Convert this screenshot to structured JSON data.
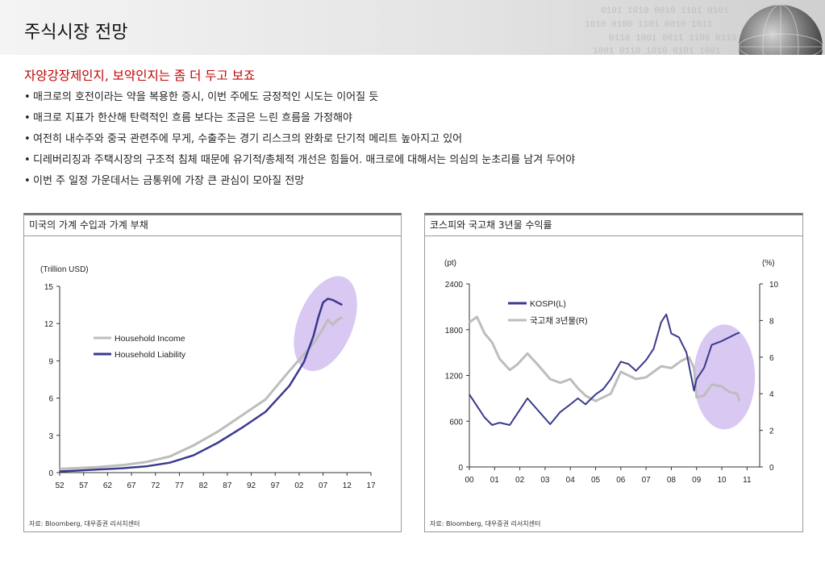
{
  "header": {
    "title": "주식시장 전망"
  },
  "subtitle": "자양강장제인지, 보약인지는 좀 더 두고 보죠",
  "bullets": [
    "매크로의 호전이라는 약을 복용한 증시, 이번 주에도 긍정적인 시도는 이어질 듯",
    "매크로 지표가 한산해 탄력적인 흐름 보다는 조금은 느린 흐름을 가정해야",
    "여전히 내수주와 중국 관련주에 무게, 수출주는 경기 리스크의 완화로 단기적 메리트 높아지고 있어",
    "디레버리징과 주택시장의 구조적 침체 때문에 유기적/총체적 개선은 힘들어. 매크로에 대해서는 의심의 눈초리를 남겨 두어야",
    "이번 주 일정 가운데서는 금통위에 가장 큰 관심이 모아질 전망"
  ],
  "chart1": {
    "title": "미국의 가계 수입과 가계 부채",
    "source": "자료: Bloomberg, 대우증권 리서치센터",
    "unit": "(Trillion USD)"
  },
  "chart2": {
    "title": "코스피와 국고채 3년물 수익률",
    "source": "자료: Bloomberg, 대우증권 리서치센터",
    "unit_left": "(pt)",
    "unit_right": "(%)"
  },
  "chart_data": [
    {
      "type": "line",
      "title": "미국의 가계 수입과 가계 부채",
      "ylabel": "(Trillion USD)",
      "ylim": [
        0,
        15
      ],
      "yticks": [
        0,
        3,
        6,
        9,
        12,
        15
      ],
      "xlim": [
        1952,
        2017
      ],
      "xticks": [
        "52",
        "57",
        "62",
        "67",
        "72",
        "77",
        "82",
        "87",
        "92",
        "97",
        "02",
        "07",
        "12",
        "17"
      ],
      "legend_position": "center-left",
      "highlight": {
        "shape": "ellipse",
        "color": "#d9c8f2"
      },
      "series": [
        {
          "name": "Household Income",
          "color": "#bdbdbd",
          "x": [
            1952,
            1955,
            1960,
            1965,
            1970,
            1975,
            1980,
            1985,
            1990,
            1995,
            2000,
            2005,
            2007,
            2008,
            2009,
            2010,
            2011
          ],
          "values": [
            0.3,
            0.35,
            0.45,
            0.6,
            0.85,
            1.3,
            2.2,
            3.3,
            4.6,
            5.9,
            8.2,
            10.4,
            11.6,
            12.3,
            11.9,
            12.3,
            12.5
          ]
        },
        {
          "name": "Household Liability",
          "color": "#3a3a8c",
          "x": [
            1952,
            1955,
            1960,
            1965,
            1970,
            1975,
            1980,
            1985,
            1990,
            1995,
            2000,
            2003,
            2005,
            2006,
            2007,
            2008,
            2009,
            2010,
            2011
          ],
          "values": [
            0.1,
            0.15,
            0.25,
            0.35,
            0.5,
            0.8,
            1.4,
            2.4,
            3.6,
            4.9,
            7.0,
            8.9,
            11.0,
            12.5,
            13.7,
            14.0,
            13.9,
            13.7,
            13.5
          ]
        }
      ]
    },
    {
      "type": "line",
      "title": "코스피와 국고채 3년물 수익률",
      "xlim": [
        2000,
        2011.5
      ],
      "xticks": [
        "00",
        "01",
        "02",
        "03",
        "04",
        "05",
        "06",
        "07",
        "08",
        "09",
        "10",
        "11"
      ],
      "y_left": {
        "label": "(pt)",
        "range": [
          0,
          2400
        ],
        "ticks": [
          0,
          600,
          1200,
          1800,
          2400
        ]
      },
      "y_right": {
        "label": "(%)",
        "range": [
          0,
          10
        ],
        "ticks": [
          0,
          2,
          4,
          6,
          8,
          10
        ]
      },
      "legend_position": "top-left",
      "highlight": {
        "shape": "ellipse",
        "color": "#d9c8f2"
      },
      "series": [
        {
          "name": "KOSPI(L)",
          "axis": "left",
          "color": "#3a3a8c",
          "x": [
            2000,
            2000.3,
            2000.6,
            2000.9,
            2001.2,
            2001.6,
            2001.9,
            2002.3,
            2002.7,
            2003.2,
            2003.6,
            2004.0,
            2004.3,
            2004.6,
            2005.0,
            2005.3,
            2005.6,
            2006.0,
            2006.3,
            2006.6,
            2007.0,
            2007.3,
            2007.6,
            2007.8,
            2008.0,
            2008.3,
            2008.6,
            2008.9,
            2009.0,
            2009.3,
            2009.6,
            2010.0,
            2010.3,
            2010.6,
            2010.7
          ],
          "values": [
            950,
            800,
            650,
            550,
            580,
            550,
            700,
            900,
            750,
            560,
            720,
            820,
            900,
            820,
            950,
            1020,
            1150,
            1380,
            1350,
            1260,
            1400,
            1550,
            1900,
            2000,
            1750,
            1700,
            1500,
            1000,
            1150,
            1300,
            1600,
            1650,
            1700,
            1750,
            1760
          ]
        },
        {
          "name": "국고채 3년물(R)",
          "axis": "right",
          "color": "#bdbdbd",
          "x": [
            2000,
            2000.3,
            2000.6,
            2000.9,
            2001.2,
            2001.6,
            2001.9,
            2002.3,
            2002.7,
            2003.2,
            2003.6,
            2004.0,
            2004.3,
            2004.6,
            2005.0,
            2005.3,
            2005.6,
            2006.0,
            2006.3,
            2006.6,
            2007.0,
            2007.3,
            2007.6,
            2008.0,
            2008.4,
            2008.7,
            2008.9,
            2009.0,
            2009.3,
            2009.6,
            2010.0,
            2010.3,
            2010.6,
            2010.7
          ],
          "values": [
            7.9,
            8.2,
            7.3,
            6.8,
            5.9,
            5.3,
            5.6,
            6.2,
            5.6,
            4.8,
            4.6,
            4.8,
            4.3,
            3.9,
            3.6,
            3.8,
            4.0,
            5.2,
            5.0,
            4.8,
            4.9,
            5.2,
            5.5,
            5.4,
            5.8,
            6.0,
            5.4,
            3.8,
            3.9,
            4.5,
            4.4,
            4.1,
            4.0,
            3.6
          ]
        }
      ]
    }
  ]
}
